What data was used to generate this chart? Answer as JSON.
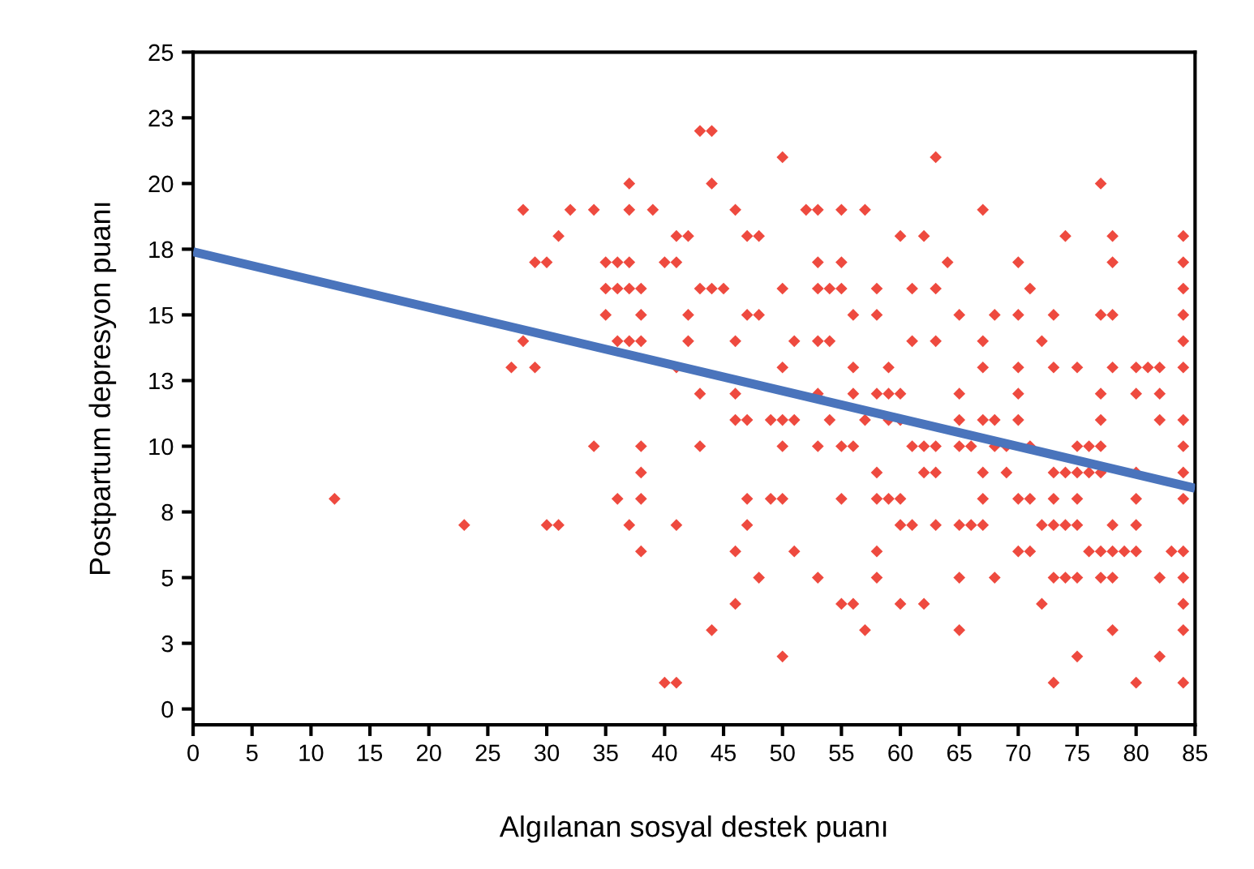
{
  "chart_data": {
    "type": "scatter",
    "xlabel": "Algılanan sosyal destek puanı",
    "ylabel": "Postpartum depresyon puanı",
    "xlim": [
      0,
      85
    ],
    "xticks": [
      0,
      5,
      10,
      15,
      20,
      25,
      30,
      35,
      40,
      45,
      50,
      55,
      60,
      65,
      70,
      75,
      80,
      85
    ],
    "ylim": [
      -0.6,
      25
    ],
    "yticks": [
      {
        "value": 0,
        "label": "0"
      },
      {
        "value": 2.5,
        "label": "3"
      },
      {
        "value": 5,
        "label": "5"
      },
      {
        "value": 7.5,
        "label": "8"
      },
      {
        "value": 10,
        "label": "10"
      },
      {
        "value": 12.5,
        "label": "13"
      },
      {
        "value": 15,
        "label": "15"
      },
      {
        "value": 17.5,
        "label": "18"
      },
      {
        "value": 20,
        "label": "20"
      },
      {
        "value": 22.5,
        "label": "23"
      },
      {
        "value": 25,
        "label": "25"
      }
    ],
    "grid": false,
    "series": [
      {
        "color": "#ee4a3f",
        "marker": "diamond",
        "x": [
          43,
          44,
          50,
          63,
          37,
          44,
          77,
          28,
          32,
          34,
          37,
          39,
          46,
          52,
          53,
          55,
          57,
          67,
          31,
          41,
          42,
          47,
          48,
          60,
          62,
          74,
          78,
          84,
          29,
          30,
          35,
          36,
          37,
          40,
          41,
          53,
          55,
          64,
          70,
          78,
          84,
          35,
          36,
          37,
          38,
          43,
          44,
          45,
          50,
          53,
          54,
          55,
          58,
          61,
          63,
          71,
          84,
          35,
          38,
          42,
          47,
          48,
          56,
          58,
          65,
          68,
          70,
          73,
          77,
          78,
          84,
          28,
          36,
          37,
          38,
          42,
          46,
          51,
          53,
          54,
          61,
          63,
          67,
          72,
          84,
          27,
          29,
          41,
          50,
          56,
          59,
          67,
          70,
          73,
          75,
          78,
          80,
          81,
          82,
          84,
          43,
          46,
          53,
          56,
          58,
          59,
          60,
          65,
          70,
          77,
          80,
          82,
          46,
          47,
          49,
          50,
          51,
          54,
          57,
          59,
          60,
          65,
          67,
          68,
          70,
          77,
          82,
          84,
          34,
          38,
          43,
          50,
          53,
          55,
          56,
          61,
          62,
          63,
          65,
          66,
          68,
          69,
          71,
          75,
          76,
          77,
          84,
          38,
          58,
          62,
          63,
          67,
          69,
          73,
          74,
          75,
          76,
          77,
          80,
          84,
          12,
          36,
          38,
          47,
          49,
          50,
          55,
          58,
          59,
          60,
          67,
          70,
          71,
          73,
          75,
          80,
          84,
          23,
          30,
          31,
          37,
          41,
          47,
          60,
          61,
          63,
          65,
          66,
          67,
          72,
          73,
          74,
          75,
          78,
          80,
          38,
          46,
          51,
          58,
          70,
          71,
          76,
          77,
          78,
          79,
          80,
          83,
          84,
          48,
          53,
          58,
          65,
          68,
          73,
          74,
          75,
          77,
          78,
          82,
          84,
          46,
          55,
          56,
          60,
          62,
          72,
          84,
          44,
          57,
          65,
          78,
          84,
          50,
          75,
          82,
          40,
          41,
          73,
          80,
          84
        ],
        "values": [
          22,
          22,
          21,
          21,
          20,
          20,
          20,
          19,
          19,
          19,
          19,
          19,
          19,
          19,
          19,
          19,
          19,
          19,
          18,
          18,
          18,
          18,
          18,
          18,
          18,
          18,
          18,
          18,
          17,
          17,
          17,
          17,
          17,
          17,
          17,
          17,
          17,
          17,
          17,
          17,
          17,
          16,
          16,
          16,
          16,
          16,
          16,
          16,
          16,
          16,
          16,
          16,
          16,
          16,
          16,
          16,
          16,
          15,
          15,
          15,
          15,
          15,
          15,
          15,
          15,
          15,
          15,
          15,
          15,
          15,
          15,
          14,
          14,
          14,
          14,
          14,
          14,
          14,
          14,
          14,
          14,
          14,
          14,
          14,
          14,
          13,
          13,
          13,
          13,
          13,
          13,
          13,
          13,
          13,
          13,
          13,
          13,
          13,
          13,
          13,
          12,
          12,
          12,
          12,
          12,
          12,
          12,
          12,
          12,
          12,
          12,
          12,
          11,
          11,
          11,
          11,
          11,
          11,
          11,
          11,
          11,
          11,
          11,
          11,
          11,
          11,
          11,
          11,
          10,
          10,
          10,
          10,
          10,
          10,
          10,
          10,
          10,
          10,
          10,
          10,
          10,
          10,
          10,
          10,
          10,
          10,
          10,
          9,
          9,
          9,
          9,
          9,
          9,
          9,
          9,
          9,
          9,
          9,
          9,
          9,
          8,
          8,
          8,
          8,
          8,
          8,
          8,
          8,
          8,
          8,
          8,
          8,
          8,
          8,
          8,
          8,
          8,
          7,
          7,
          7,
          7,
          7,
          7,
          7,
          7,
          7,
          7,
          7,
          7,
          7,
          7,
          7,
          7,
          7,
          7,
          6,
          6,
          6,
          6,
          6,
          6,
          6,
          6,
          6,
          6,
          6,
          6,
          6,
          5,
          5,
          5,
          5,
          5,
          5,
          5,
          5,
          5,
          5,
          5,
          5,
          4,
          4,
          4,
          4,
          4,
          4,
          4,
          3,
          3,
          3,
          3,
          3,
          2,
          2,
          2,
          1,
          1,
          1,
          1,
          1
        ]
      },
      {
        "type": "line",
        "color": "#4a74bc",
        "line_style": "solid",
        "marker": "none",
        "x": [
          0,
          85
        ],
        "values": [
          17.4,
          8.4
        ]
      }
    ]
  }
}
